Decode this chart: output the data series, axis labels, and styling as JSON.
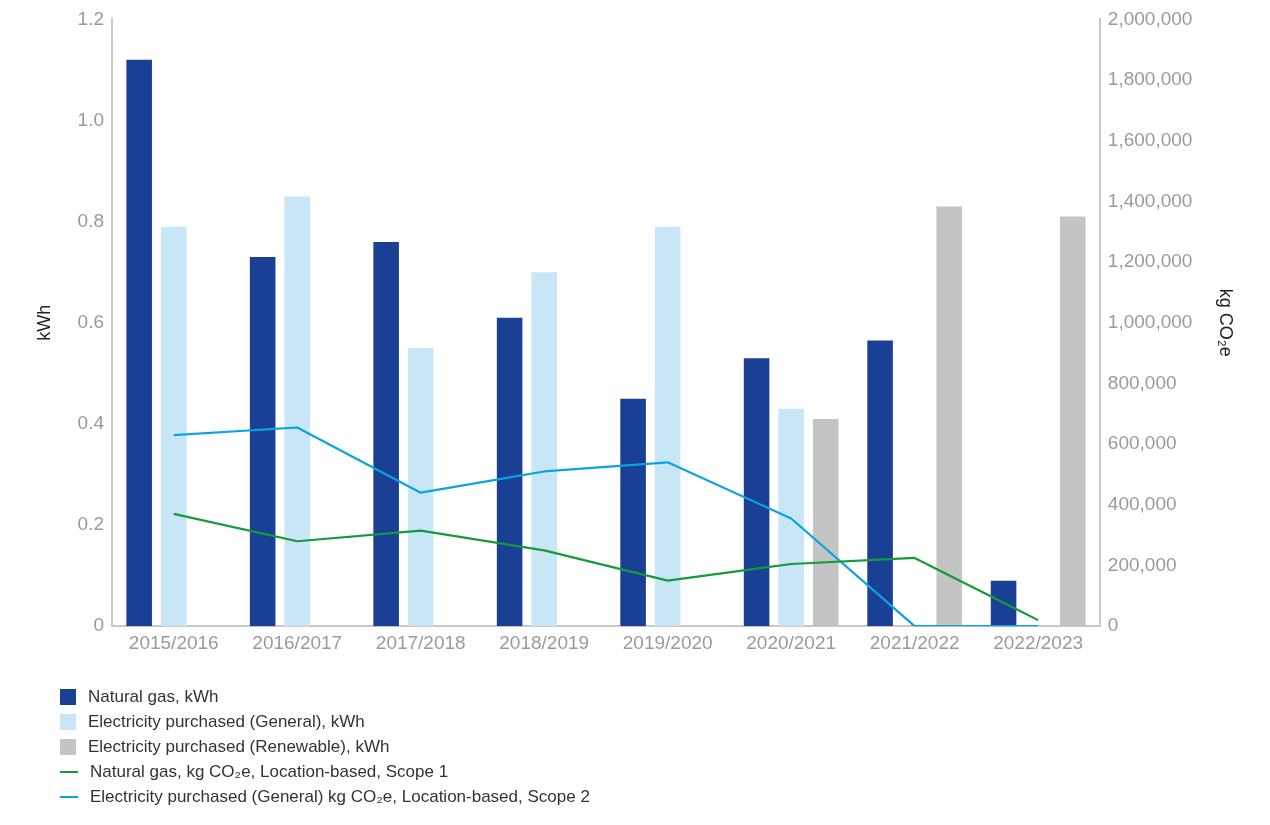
{
  "chart_data": {
    "type": "bar",
    "ylabel": "kWh",
    "y2label": "kg CO₂e",
    "categories": [
      "2015/2016",
      "2016/2017",
      "2017/2018",
      "2018/2019",
      "2019/2020",
      "2020/2021",
      "2021/2022",
      "2022/2023"
    ],
    "series": [
      {
        "name": "Natural gas, kWh",
        "color": "#1a4095",
        "values": [
          1.12,
          0.73,
          0.76,
          0.61,
          0.45,
          0.53,
          0.565,
          0.09
        ]
      },
      {
        "name": "Electricity purchased (General), kWh",
        "color": "#c9e6f7",
        "values": [
          0.79,
          0.85,
          0.55,
          0.7,
          0.79,
          0.43,
          null,
          null
        ]
      },
      {
        "name": "Electricity purchased (Renewable), kWh",
        "color": "#c4c4c4",
        "values": [
          null,
          null,
          null,
          null,
          null,
          0.41,
          0.83,
          0.81
        ]
      },
      {
        "name": "Natural gas, kg CO₂e, Location-based, Scope 1",
        "type": "line",
        "axis": "y2",
        "color": "#169a3c",
        "values": [
          370000,
          280000,
          315000,
          250000,
          150000,
          205000,
          225000,
          20000
        ]
      },
      {
        "name": "Electricity purchased (General) kg CO₂e, Location-based, Scope 2",
        "type": "line",
        "axis": "y2",
        "color": "#0aa3e0",
        "values": [
          630000,
          655000,
          440000,
          510000,
          540000,
          355000,
          0,
          0
        ]
      }
    ],
    "ylim": [
      0,
      1.2
    ],
    "yticks": [
      0,
      0.2,
      0.4,
      0.6,
      0.8,
      {
        "value": 1,
        "label": "1.0"
      },
      1.2
    ],
    "y2lim": [
      0,
      2000000
    ],
    "y2ticks": [
      0,
      {
        "value": 200000,
        "label": "200,000"
      },
      {
        "value": 400000,
        "label": "400,000"
      },
      {
        "value": 600000,
        "label": "600,000"
      },
      {
        "value": 800000,
        "label": "800,000"
      },
      {
        "value": 1000000,
        "label": "1,000,000"
      },
      {
        "value": 1200000,
        "label": "1,200,000"
      },
      {
        "value": 1400000,
        "label": "1,400,000"
      },
      {
        "value": 1600000,
        "label": "1,600,000"
      },
      {
        "value": 1800000,
        "label": "1,800,000"
      },
      {
        "value": 2000000,
        "label": "2,000,000"
      }
    ],
    "grid": false,
    "legend": "bottom left",
    "marker": "none",
    "line_style": "solid"
  }
}
